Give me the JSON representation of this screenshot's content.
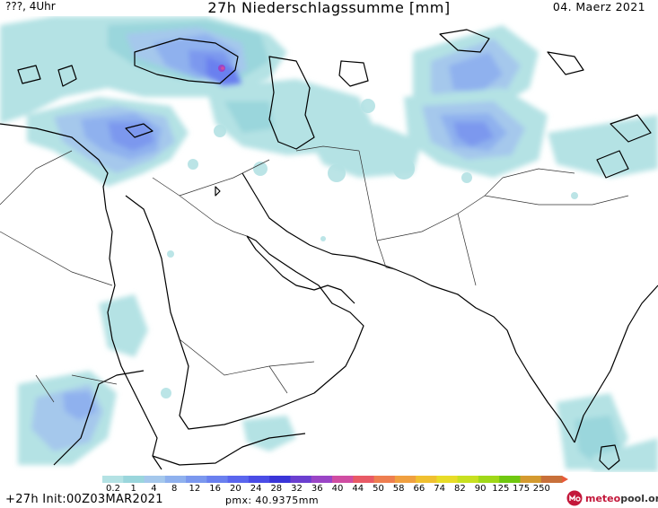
{
  "header": {
    "top_left": "???, 4Uhr",
    "title": "27h Niederschlagssumme [mm]",
    "date": "04. Maerz 2021"
  },
  "footer": {
    "lead_init": "+27h Init:00Z03MAR2021",
    "pmx": "pmx: 40.9375mm",
    "logo_meteo": "meteo",
    "logo_pool": "pool.org"
  },
  "legend": {
    "labels": [
      "0.2",
      "1",
      "4",
      "8",
      "12",
      "16",
      "20",
      "24",
      "28",
      "32",
      "36",
      "40",
      "44",
      "50",
      "58",
      "66",
      "74",
      "82",
      "90",
      "125",
      "175",
      "250"
    ],
    "colors": [
      "#b4e2e4",
      "#9ad6dc",
      "#a5c8ec",
      "#8fb1ee",
      "#7b98ee",
      "#6a80ef",
      "#5a66ee",
      "#4a4ce6",
      "#3a35d8",
      "#6b3fd0",
      "#9a45c6",
      "#d04da2",
      "#e85a66",
      "#ee7e50",
      "#f0a040",
      "#f0c030",
      "#e8dc28",
      "#c8e020",
      "#a0d818",
      "#70c810",
      "#d49a30",
      "#c8703a"
    ]
  },
  "icons": {
    "logo": "meteopool-logo-icon"
  }
}
